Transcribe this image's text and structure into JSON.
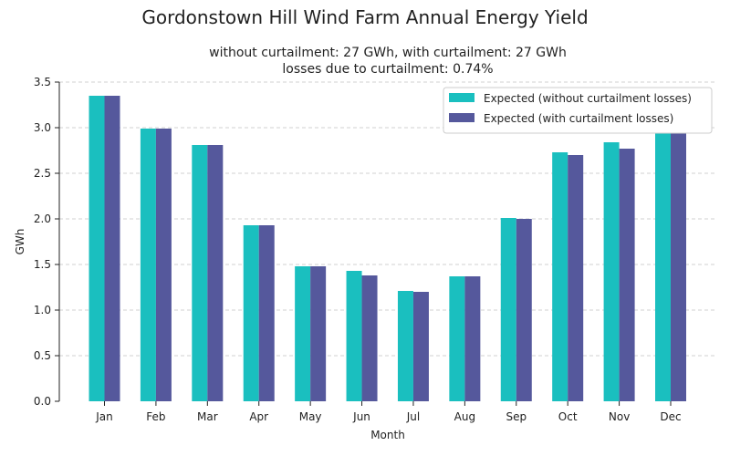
{
  "chart_data": {
    "type": "bar",
    "title": "Gordonstown Hill Wind Farm Annual Energy Yield",
    "subtitle_line1": "without curtailment: 27 GWh, with curtailment: 27 GWh",
    "subtitle_line2": "losses due to curtailment: 0.74%",
    "xlabel": "Month",
    "ylabel": "GWh",
    "ylim": [
      0,
      3.5
    ],
    "yticks": [
      "0.0",
      "0.5",
      "1.0",
      "1.5",
      "2.0",
      "2.5",
      "3.0",
      "3.5"
    ],
    "categories": [
      "Jan",
      "Feb",
      "Mar",
      "Apr",
      "May",
      "Jun",
      "Jul",
      "Aug",
      "Sep",
      "Oct",
      "Nov",
      "Dec"
    ],
    "series": [
      {
        "name": "Expected (without curtailment losses)",
        "color": "#1abfbf",
        "values": [
          3.35,
          2.99,
          2.81,
          1.93,
          1.48,
          1.43,
          1.21,
          1.37,
          2.01,
          2.73,
          2.84,
          2.95
        ]
      },
      {
        "name": "Expected (with curtailment losses)",
        "color": "#55589c",
        "values": [
          3.35,
          2.99,
          2.81,
          1.93,
          1.48,
          1.38,
          1.2,
          1.37,
          2.0,
          2.7,
          2.77,
          2.95
        ]
      }
    ],
    "grid": "y-dashed",
    "legend_position": "top-right"
  }
}
